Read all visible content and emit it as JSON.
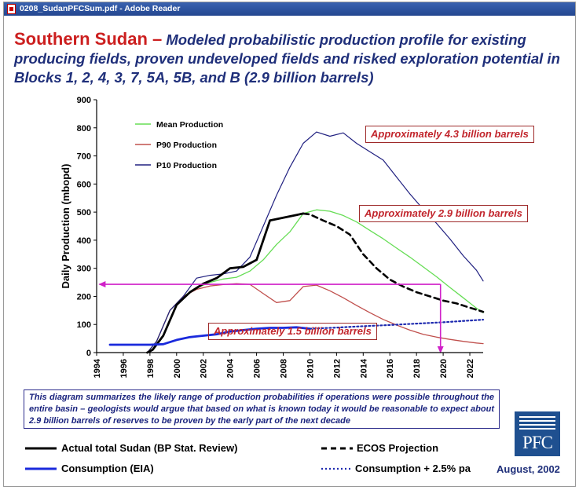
{
  "window": {
    "title": "0208_SudanPFCSum.pdf - Adobe Reader"
  },
  "heading": {
    "main": "Southern Sudan –",
    "sub": "Modeled probabilistic production profile for existing producing fields, proven undeveloped fields and risked exploration potential in Blocks 1, 2, 4, 3, 7, 5A, 5B, and B (2.9 billion barrels)"
  },
  "chart_data": {
    "type": "line",
    "title": "",
    "xlabel": "",
    "ylabel": "Daily Production (mbopd)",
    "xlim": [
      1994,
      2023
    ],
    "ylim": [
      0,
      900
    ],
    "x_ticks": [
      1994,
      1996,
      1998,
      2000,
      2002,
      2004,
      2006,
      2008,
      2010,
      2012,
      2014,
      2016,
      2018,
      2020,
      2022
    ],
    "y_ticks": [
      0,
      100,
      200,
      300,
      400,
      500,
      600,
      700,
      800,
      900
    ],
    "legend_placement": "top-left",
    "series": [
      {
        "name": "Mean Production",
        "color": "#66dd55",
        "width": 1.3,
        "dash": "",
        "x": [
          1997.8,
          1998.5,
          1999.5,
          2000.5,
          2001.5,
          2002.5,
          2003.5,
          2004.5,
          2005.5,
          2006.5,
          2007.5,
          2008.5,
          2009.5,
          2010.5,
          2011.5,
          2012.5,
          2013.5,
          2014.5,
          2015.5,
          2016.5,
          2017.5,
          2018.5,
          2019.5,
          2020.5,
          2021.5,
          2022.5,
          2023
        ],
        "y": [
          0,
          40,
          150,
          200,
          230,
          250,
          262,
          268,
          290,
          330,
          385,
          430,
          495,
          508,
          503,
          488,
          465,
          435,
          405,
          372,
          340,
          305,
          270,
          232,
          195,
          158,
          142
        ]
      },
      {
        "name": "P90 Production",
        "color": "#c0504d",
        "width": 1.3,
        "dash": "",
        "x": [
          1997.8,
          1998.5,
          1999.5,
          2000.5,
          2001.5,
          2002.5,
          2003.5,
          2004.5,
          2005.5,
          2006.5,
          2007.5,
          2008.5,
          2009.5,
          2010.5,
          2011.5,
          2012.5,
          2013.5,
          2014.5,
          2015.5,
          2016.5,
          2017.5,
          2018.5,
          2019.5,
          2020.5,
          2021.5,
          2022.5,
          2023
        ],
        "y": [
          0,
          40,
          150,
          200,
          225,
          237,
          242,
          245,
          243,
          210,
          178,
          185,
          235,
          240,
          220,
          195,
          168,
          142,
          118,
          98,
          80,
          65,
          55,
          47,
          40,
          34,
          32
        ]
      },
      {
        "name": "P10 Production",
        "color": "#202080",
        "width": 1.2,
        "dash": "",
        "x": [
          1997.8,
          1998.5,
          1999.5,
          2000.5,
          2001.5,
          2002.5,
          2003.5,
          2004.5,
          2005.5,
          2006.5,
          2007.5,
          2008.5,
          2009.5,
          2010.5,
          2011.5,
          2012.5,
          2013.5,
          2014.5,
          2015.5,
          2016.5,
          2017.5,
          2018.5,
          2019.5,
          2020.5,
          2021.5,
          2022.5,
          2023
        ],
        "y": [
          0,
          40,
          150,
          200,
          265,
          275,
          280,
          290,
          340,
          450,
          560,
          660,
          745,
          785,
          770,
          782,
          745,
          715,
          685,
          625,
          565,
          510,
          460,
          405,
          345,
          293,
          255
        ]
      },
      {
        "name": "Actual total Sudan (BP Stat. Review)",
        "color": "#000000",
        "width": 2.8,
        "dash": "",
        "x": [
          1997.8,
          1998.2,
          1999,
          2000,
          2001,
          2002,
          2003,
          2004,
          2005,
          2006,
          2007,
          2008,
          2009,
          2009.5
        ],
        "y": [
          0,
          10,
          60,
          170,
          215,
          245,
          265,
          300,
          305,
          330,
          470,
          480,
          490,
          495
        ]
      },
      {
        "name": "ECOS Projection",
        "color": "#000000",
        "width": 2.6,
        "dash": "7,5",
        "x": [
          2009.5,
          2010,
          2011,
          2012,
          2013,
          2014,
          2015,
          2016,
          2017,
          2018,
          2019,
          2020,
          2021,
          2022,
          2023
        ],
        "y": [
          495,
          492,
          470,
          450,
          420,
          350,
          300,
          260,
          235,
          215,
          200,
          185,
          175,
          160,
          145
        ]
      },
      {
        "name": "Consumption (EIA)",
        "color": "#1a2adc",
        "width": 2.8,
        "dash": "",
        "x": [
          1995,
          1996,
          1997,
          1998,
          1999,
          2000,
          2001,
          2002,
          2003,
          2004,
          2005,
          2006,
          2007,
          2008,
          2009,
          2010
        ],
        "y": [
          28,
          28,
          28,
          28,
          30,
          45,
          55,
          60,
          65,
          75,
          80,
          85,
          88,
          88,
          90,
          85
        ]
      },
      {
        "name": "Consumption + 2.5% pa",
        "color": "#1f2bb0",
        "width": 2.2,
        "dash": "2,3",
        "x": [
          2010,
          2012,
          2014,
          2016,
          2018,
          2020,
          2023
        ],
        "y": [
          85,
          89,
          94,
          98,
          103,
          108,
          117
        ]
      }
    ],
    "arrows": [
      {
        "from": [
          2019.8,
          243
        ],
        "to": [
          1994.2,
          243
        ],
        "color": "#d020c8"
      },
      {
        "from": [
          2019.8,
          243
        ],
        "to": [
          2019.8,
          0
        ],
        "color": "#d020c8"
      }
    ],
    "annotations": [
      "Approximately 4.3 billion barrels",
      "Approximately 2.9 billion barrels",
      "Approximately 1.5 billion barrels"
    ]
  },
  "legend_inset": [
    "Mean Production",
    "P90 Production",
    "P10 Production"
  ],
  "note": "This diagram summarizes the likely range of production probabilities if operations were possible throughout the entire basin – geologists would argue that based on what is known today it would be reasonable to expect about 2.9 billion barrels of reserves to be proven by the early part of the next decade",
  "legend_bottom": {
    "actual": "Actual total Sudan (BP Stat. Review)",
    "ecos": "ECOS Projection",
    "consumption": "Consumption (EIA)",
    "consumption_growth": "Consumption + 2.5% pa"
  },
  "logo": "PFC",
  "date": "August, 2002"
}
